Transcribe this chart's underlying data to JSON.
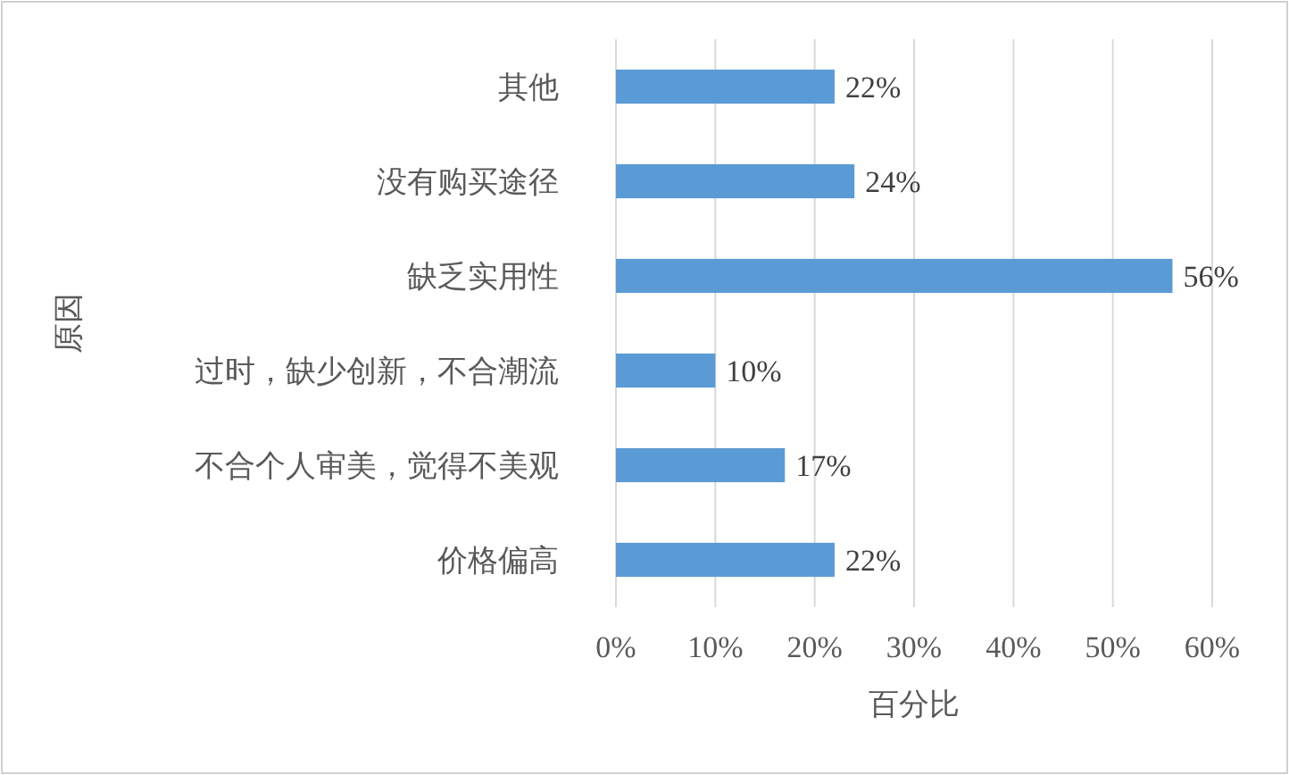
{
  "chart_data": {
    "type": "bar",
    "orientation": "horizontal",
    "categories": [
      "其他",
      "没有购买途径",
      "缺乏实用性",
      "过时，缺少创新，不合潮流",
      "不合个人审美，觉得不美观",
      "价格偏高"
    ],
    "values": [
      22,
      24,
      56,
      10,
      17,
      22
    ],
    "value_labels": [
      "22%",
      "24%",
      "56%",
      "10%",
      "17%",
      "22%"
    ],
    "color": "#5b9bd5",
    "xlim": [
      0,
      60
    ],
    "xticks": [
      {
        "value": 0,
        "label": "0%"
      },
      {
        "value": 10,
        "label": "10%"
      },
      {
        "value": 20,
        "label": "20%"
      },
      {
        "value": 30,
        "label": "30%"
      },
      {
        "value": 40,
        "label": "40%"
      },
      {
        "value": 50,
        "label": "50%"
      },
      {
        "value": 60,
        "label": "60%"
      }
    ],
    "grid": "x",
    "xlabel": "百分比",
    "ylabel": "原因"
  }
}
